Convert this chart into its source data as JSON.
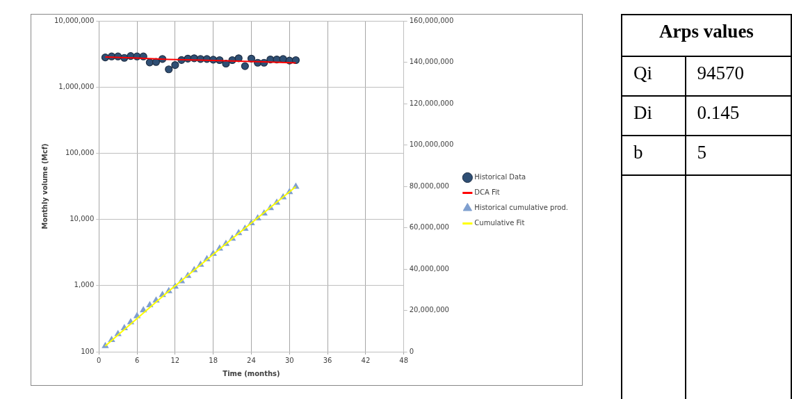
{
  "chart_data": [
    {
      "type": "scatter",
      "xlabel": "Time (months)",
      "ylabel": "Monthly volume (Mcf)",
      "xlim": [
        0,
        48
      ],
      "xticks": [
        0,
        6,
        12,
        18,
        24,
        30,
        36,
        42,
        48
      ],
      "ylim": [
        100,
        10000000
      ],
      "yticks": [
        100,
        {
          "value": 1000,
          "label": "1,000"
        },
        {
          "value": 10000,
          "label": "10,000"
        },
        {
          "value": 100000,
          "label": "100,000"
        },
        {
          "value": 1000000,
          "label": "1,000,000"
        },
        {
          "value": 10000000,
          "label": "10,000,000"
        }
      ],
      "y2lim": [
        0,
        160000000
      ],
      "y2ticks": [
        0,
        {
          "value": 20000000,
          "label": "20,000,000"
        },
        {
          "value": 40000000,
          "label": "40,000,000"
        },
        {
          "value": 60000000,
          "label": "60,000,000"
        },
        {
          "value": 80000000,
          "label": "80,000,000"
        },
        {
          "value": 100000000,
          "label": "100,000,000"
        },
        {
          "value": 120000000,
          "label": "120,000,000"
        },
        {
          "value": 140000000,
          "label": "140,000,000"
        },
        {
          "value": 160000000,
          "label": "160,000,000"
        }
      ],
      "log": "y",
      "grid": true,
      "legend": "right",
      "x": [
        1,
        2,
        3,
        4,
        5,
        6,
        7,
        8,
        9,
        10,
        11,
        12,
        13,
        14,
        15,
        16,
        17,
        18,
        19,
        20,
        21,
        22,
        23,
        24,
        25,
        26,
        27,
        28,
        29,
        30,
        31
      ],
      "series": [
        {
          "name": "Historical Data",
          "type": "scatter",
          "marker": "circle",
          "color": "#2f4f74",
          "values": [
            2800000,
            2900000,
            2900000,
            2760000,
            2940000,
            2900000,
            2900000,
            2350000,
            2390000,
            2650000,
            1850000,
            2150000,
            2560000,
            2690000,
            2720000,
            2650000,
            2650000,
            2590000,
            2550000,
            2260000,
            2550000,
            2720000,
            2070000,
            2690000,
            2330000,
            2330000,
            2610000,
            2610000,
            2650000,
            2510000,
            2550000
          ]
        },
        {
          "name": "DCA Fit",
          "type": "line",
          "marker": "none",
          "color": "#ff0000",
          "x": [
            1,
            6,
            11,
            16,
            21,
            26,
            31
          ],
          "values": [
            2850000,
            2750000,
            2620000,
            2550000,
            2470000,
            2400000,
            2310000
          ]
        },
        {
          "name": "Historical cumulative prod.",
          "type": "scatter",
          "marker": "triangle",
          "axis": "y2",
          "color": "#7f9fcf",
          "values": [
            2800000,
            5700000,
            8600000,
            11400000,
            14300000,
            17200000,
            20100000,
            22500000,
            24800000,
            27500000,
            29300000,
            31500000,
            34100000,
            36700000,
            39500000,
            42100000,
            44800000,
            47400000,
            49900000,
            52200000,
            54700000,
            57400000,
            59500000,
            62200000,
            64500000,
            66900000,
            69500000,
            72100000,
            74700000,
            77200000,
            79800000
          ]
        },
        {
          "name": "Cumulative Fit",
          "type": "line",
          "marker": "none",
          "axis": "y2",
          "color": "#ffff00",
          "x": [
            1,
            11,
            21,
            31
          ],
          "values": [
            2800000,
            29300000,
            54700000,
            79800000
          ]
        }
      ]
    },
    {
      "type": "other",
      "title": "Arps values",
      "annotations": [
        "Qi",
        "94570",
        "Di",
        "0.145",
        "b",
        "5"
      ]
    }
  ]
}
